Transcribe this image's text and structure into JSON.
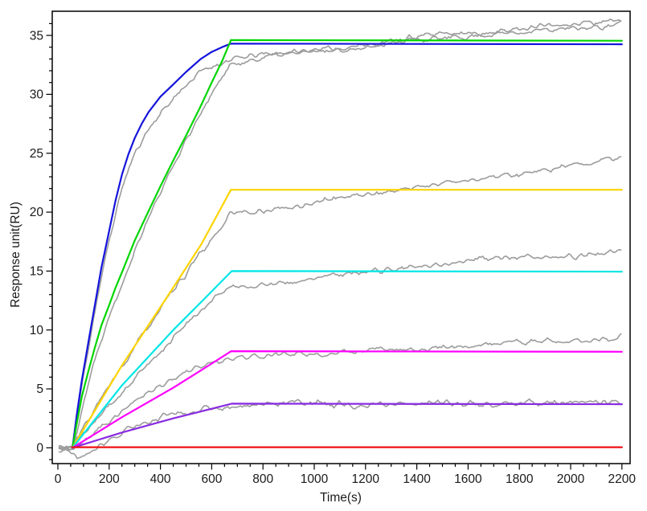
{
  "colors": {
    "background": "#ffffff",
    "axis": "#000000",
    "text": "#1a1a1a",
    "measured_gray": "#9c9c9c",
    "fit_blue": "#1414dc",
    "fit_green": "#00d600",
    "fit_yellow": "#ffd400",
    "fit_cyan": "#00e6e6",
    "fit_magenta": "#ff00ff",
    "fit_purple": "#8a2be2",
    "fit_red": "#ee1111"
  },
  "chart_data": {
    "type": "line",
    "title": "",
    "xlabel": "Time(s)",
    "ylabel": "Response unit(RU)",
    "xlim": [
      -22,
      2232
    ],
    "ylim": [
      -1.34,
      37.05
    ],
    "grid": false,
    "legend": "none",
    "x_tick_values": [
      0,
      200,
      400,
      600,
      800,
      1000,
      1200,
      1400,
      1600,
      1800,
      2000,
      2200
    ],
    "x_tick_labels": [
      "0",
      "200",
      "400",
      "600",
      "800",
      "1000",
      "1200",
      "1400",
      "1600",
      "1800",
      "2000",
      "2200"
    ],
    "x_minor_step": 50,
    "y_tick_values": [
      0,
      5,
      10,
      15,
      20,
      25,
      30,
      35
    ],
    "y_tick_labels": [
      "0",
      "5",
      "10",
      "15",
      "20",
      "25",
      "30",
      "35"
    ],
    "y_minor_step": 1,
    "association_end_s": 675,
    "series": [
      {
        "name": "measured-trace-1",
        "role": "measured",
        "color": "#9c9c9c",
        "width": 1.6,
        "noise": 0.18,
        "seed": 11,
        "points": [
          [
            5,
            0
          ],
          [
            57,
            0
          ],
          [
            100,
            6.2
          ],
          [
            150,
            12.3
          ],
          [
            200,
            17.5
          ],
          [
            250,
            22.0
          ],
          [
            300,
            24.9
          ],
          [
            350,
            26.9
          ],
          [
            400,
            28.4
          ],
          [
            450,
            29.7
          ],
          [
            500,
            30.9
          ],
          [
            557,
            32.0
          ],
          [
            600,
            32.4
          ],
          [
            640,
            32.7
          ],
          [
            675,
            32.9
          ],
          [
            800,
            33.3
          ],
          [
            1000,
            33.8
          ],
          [
            1200,
            34.2
          ],
          [
            1400,
            34.6
          ],
          [
            1600,
            35.0
          ],
          [
            1800,
            35.2
          ],
          [
            2000,
            35.6
          ],
          [
            2200,
            36.0
          ]
        ]
      },
      {
        "name": "measured-trace-2",
        "role": "measured",
        "color": "#9c9c9c",
        "width": 1.6,
        "noise": 0.18,
        "seed": 22,
        "points": [
          [
            5,
            0
          ],
          [
            57,
            0
          ],
          [
            100,
            4.0
          ],
          [
            150,
            8.0
          ],
          [
            200,
            11.3
          ],
          [
            250,
            14.0
          ],
          [
            300,
            16.8
          ],
          [
            350,
            19.3
          ],
          [
            400,
            21.6
          ],
          [
            450,
            23.9
          ],
          [
            500,
            26.1
          ],
          [
            557,
            28.5
          ],
          [
            600,
            30.1
          ],
          [
            640,
            31.5
          ],
          [
            675,
            32.6
          ],
          [
            800,
            33.1
          ],
          [
            1000,
            33.6
          ],
          [
            1200,
            34.1
          ],
          [
            1400,
            34.8
          ],
          [
            1600,
            35.2
          ],
          [
            1800,
            35.6
          ],
          [
            2000,
            35.9
          ],
          [
            2200,
            36.3
          ]
        ]
      },
      {
        "name": "measured-trace-3",
        "role": "measured",
        "color": "#9c9c9c",
        "width": 1.6,
        "noise": 0.18,
        "seed": 33,
        "points": [
          [
            5,
            0
          ],
          [
            57,
            0
          ],
          [
            150,
            3.6
          ],
          [
            250,
            6.9
          ],
          [
            350,
            10.3
          ],
          [
            450,
            13.2
          ],
          [
            550,
            16.2
          ],
          [
            620,
            18.2
          ],
          [
            675,
            19.9
          ],
          [
            800,
            20.2
          ],
          [
            950,
            20.5
          ],
          [
            1100,
            21.2
          ],
          [
            1340,
            22.0
          ],
          [
            1500,
            22.4
          ],
          [
            1650,
            22.8
          ],
          [
            1800,
            23.3
          ],
          [
            1950,
            23.7
          ],
          [
            2100,
            24.2
          ],
          [
            2200,
            24.6
          ]
        ]
      },
      {
        "name": "measured-trace-4",
        "role": "measured",
        "color": "#9c9c9c",
        "width": 1.6,
        "noise": 0.18,
        "seed": 44,
        "points": [
          [
            5,
            0
          ],
          [
            57,
            0
          ],
          [
            150,
            2.3
          ],
          [
            250,
            4.7
          ],
          [
            350,
            7.1
          ],
          [
            450,
            9.4
          ],
          [
            550,
            11.5
          ],
          [
            620,
            12.8
          ],
          [
            675,
            13.6
          ],
          [
            800,
            13.8
          ],
          [
            1000,
            14.4
          ],
          [
            1200,
            14.9
          ],
          [
            1400,
            15.4
          ],
          [
            1600,
            15.9
          ],
          [
            1800,
            16.1
          ],
          [
            2000,
            16.3
          ],
          [
            2200,
            16.6
          ]
        ]
      },
      {
        "name": "measured-trace-5",
        "role": "measured",
        "color": "#9c9c9c",
        "width": 1.6,
        "noise": 0.18,
        "seed": 55,
        "points": [
          [
            5,
            0
          ],
          [
            57,
            0
          ],
          [
            150,
            1.5
          ],
          [
            250,
            3.0
          ],
          [
            350,
            4.6
          ],
          [
            450,
            6.0
          ],
          [
            550,
            7.0
          ],
          [
            675,
            7.5
          ],
          [
            800,
            7.8
          ],
          [
            1000,
            8.0
          ],
          [
            1200,
            8.2
          ],
          [
            1400,
            8.4
          ],
          [
            1600,
            8.7
          ],
          [
            1800,
            8.9
          ],
          [
            2000,
            9.1
          ],
          [
            2200,
            9.4
          ]
        ]
      },
      {
        "name": "measured-trace-6",
        "role": "measured",
        "color": "#9c9c9c",
        "width": 1.6,
        "noise": 0.22,
        "seed": 66,
        "points": [
          [
            5,
            0
          ],
          [
            60,
            -0.2
          ],
          [
            90,
            -0.75
          ],
          [
            120,
            -0.55
          ],
          [
            160,
            0.3
          ],
          [
            200,
            0.9
          ],
          [
            250,
            1.3
          ],
          [
            350,
            2.1
          ],
          [
            450,
            2.8
          ],
          [
            550,
            3.3
          ],
          [
            675,
            3.7
          ],
          [
            900,
            3.75
          ],
          [
            1200,
            3.7
          ],
          [
            1500,
            3.8
          ],
          [
            1800,
            3.75
          ],
          [
            2000,
            3.85
          ],
          [
            2200,
            3.95
          ]
        ]
      },
      {
        "name": "fit-blue",
        "role": "fit",
        "color": "#1414dc",
        "width": 2.2,
        "noise": 0,
        "seed": 1,
        "points": [
          [
            57,
            0
          ],
          [
            75,
            3.0
          ],
          [
            94,
            5.8
          ],
          [
            120,
            9.1
          ],
          [
            144,
            12.1
          ],
          [
            170,
            15.3
          ],
          [
            200,
            18.4
          ],
          [
            225,
            21.0
          ],
          [
            250,
            23.2
          ],
          [
            275,
            24.9
          ],
          [
            300,
            26.3
          ],
          [
            327,
            27.5
          ],
          [
            354,
            28.5
          ],
          [
            400,
            29.8
          ],
          [
            448,
            30.8
          ],
          [
            500,
            31.9
          ],
          [
            557,
            33.0
          ],
          [
            600,
            33.6
          ],
          [
            640,
            34.0
          ],
          [
            675,
            34.3
          ],
          [
            2200,
            34.25
          ]
        ]
      },
      {
        "name": "fit-green",
        "role": "fit",
        "color": "#00d600",
        "width": 2.2,
        "noise": 0,
        "seed": 2,
        "points": [
          [
            57,
            0
          ],
          [
            75,
            2.2
          ],
          [
            94,
            4.4
          ],
          [
            120,
            6.6
          ],
          [
            144,
            8.5
          ],
          [
            170,
            10.4
          ],
          [
            200,
            12.1
          ],
          [
            225,
            13.6
          ],
          [
            250,
            14.9
          ],
          [
            300,
            17.6
          ],
          [
            354,
            20.1
          ],
          [
            400,
            22.2
          ],
          [
            448,
            24.3
          ],
          [
            500,
            26.5
          ],
          [
            557,
            29.0
          ],
          [
            600,
            31.0
          ],
          [
            640,
            32.8
          ],
          [
            675,
            34.6
          ],
          [
            2200,
            34.55
          ]
        ]
      },
      {
        "name": "fit-yellow",
        "role": "fit",
        "color": "#ffd400",
        "width": 2.2,
        "noise": 0,
        "seed": 3,
        "points": [
          [
            57,
            0
          ],
          [
            250,
            7.0
          ],
          [
            450,
            13.6
          ],
          [
            560,
            17.3
          ],
          [
            675,
            21.9
          ],
          [
            2200,
            21.9
          ]
        ]
      },
      {
        "name": "fit-cyan",
        "role": "fit",
        "color": "#00e6e6",
        "width": 2.2,
        "noise": 0,
        "seed": 4,
        "points": [
          [
            57,
            0
          ],
          [
            250,
            5.3
          ],
          [
            450,
            10.0
          ],
          [
            560,
            12.4
          ],
          [
            678,
            15.0
          ],
          [
            2200,
            14.95
          ]
        ]
      },
      {
        "name": "fit-magenta",
        "role": "fit",
        "color": "#ff00ff",
        "width": 2.2,
        "noise": 0,
        "seed": 5,
        "points": [
          [
            57,
            0
          ],
          [
            250,
            2.6
          ],
          [
            450,
            5.1
          ],
          [
            560,
            6.6
          ],
          [
            676,
            8.2
          ],
          [
            2200,
            8.15
          ]
        ]
      },
      {
        "name": "fit-purple",
        "role": "fit",
        "color": "#8a2be2",
        "width": 2.2,
        "noise": 0,
        "seed": 6,
        "points": [
          [
            57,
            0
          ],
          [
            250,
            1.3
          ],
          [
            450,
            2.5
          ],
          [
            560,
            3.1
          ],
          [
            678,
            3.75
          ],
          [
            2200,
            3.7
          ]
        ]
      },
      {
        "name": "fit-red",
        "role": "fit",
        "color": "#ee1111",
        "width": 2.2,
        "noise": 0,
        "seed": 7,
        "points": [
          [
            55,
            0.05
          ],
          [
            2200,
            0.05
          ]
        ]
      }
    ]
  }
}
